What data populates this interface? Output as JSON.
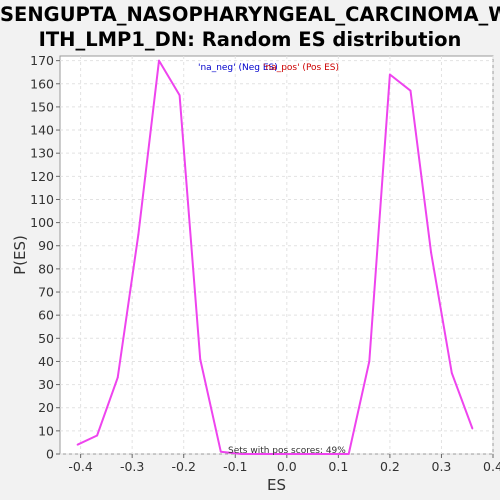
{
  "chart_data": {
    "type": "line",
    "title_line1": "SENGUPTA_NASOPHARYNGEAL_CARCINOMA_W",
    "title_line2": "ITH_LMP1_DN: Random ES distribution",
    "xlabel": "ES",
    "ylabel": "P(ES)",
    "xlim": [
      -0.44,
      0.4
    ],
    "ylim": [
      0,
      172
    ],
    "x_ticks": [
      "-0.4",
      "-0.3",
      "-0.2",
      "-0.1",
      "0.0",
      "0.1",
      "0.2",
      "0.3",
      "0.4"
    ],
    "x_tick_values": [
      -0.4,
      -0.3,
      -0.2,
      -0.1,
      0.0,
      0.1,
      0.2,
      0.3,
      0.4
    ],
    "y_ticks": [
      "0",
      "10",
      "20",
      "30",
      "40",
      "50",
      "60",
      "70",
      "80",
      "90",
      "100",
      "110",
      "120",
      "130",
      "140",
      "150",
      "160",
      "170"
    ],
    "y_tick_values": [
      0,
      10,
      20,
      30,
      40,
      50,
      60,
      70,
      80,
      90,
      100,
      110,
      120,
      130,
      140,
      150,
      160,
      170
    ],
    "grid": true,
    "legend": [
      {
        "label": "'na_neg' (Neg ES)",
        "color": "#0000cc"
      },
      {
        "label": "'na_pos' (Pos ES)",
        "color": "#cc0000"
      }
    ],
    "line_color": "#ee44ee",
    "series": [
      {
        "x": [
          -0.406,
          -0.368,
          -0.328,
          -0.288,
          -0.248,
          -0.208,
          -0.168,
          -0.128,
          -0.088,
          -0.048,
          -0.008,
          0.032,
          0.072,
          0.12,
          0.16,
          0.2,
          0.24,
          0.28,
          0.32,
          0.36
        ],
        "y": [
          4,
          8,
          33,
          95,
          170,
          155,
          41,
          1,
          0,
          0,
          0,
          0,
          0,
          0,
          40,
          164,
          157,
          87,
          35,
          11
        ]
      }
    ],
    "annotation": "Sets with pos scores: 49%"
  }
}
